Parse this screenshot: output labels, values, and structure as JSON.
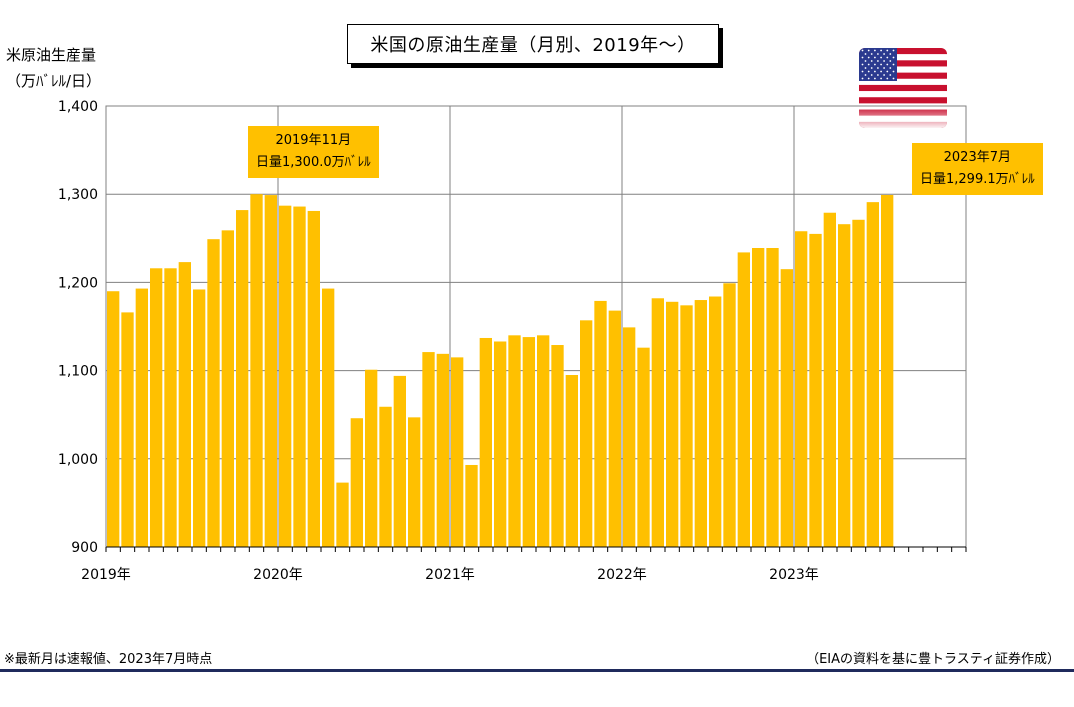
{
  "chart_data": {
    "type": "bar",
    "title": "米国の原油生産量（月別、2019年～）",
    "ylabel_line1": "米原油生産量",
    "ylabel_line2": "（万ﾊﾞﾚﾙ/日）",
    "ylim": [
      900,
      1400
    ],
    "y_ticks": [
      "900",
      "1,000",
      "1,100",
      "1,200",
      "1,300",
      "1,400"
    ],
    "x_tick_labels": [
      "2019年",
      "2020年",
      "2021年",
      "2022年",
      "2023年"
    ],
    "grid": true,
    "bar_color": "#ffc000",
    "categories": [
      "2019-01",
      "2019-02",
      "2019-03",
      "2019-04",
      "2019-05",
      "2019-06",
      "2019-07",
      "2019-08",
      "2019-09",
      "2019-10",
      "2019-11",
      "2019-12",
      "2020-01",
      "2020-02",
      "2020-03",
      "2020-04",
      "2020-05",
      "2020-06",
      "2020-07",
      "2020-08",
      "2020-09",
      "2020-10",
      "2020-11",
      "2020-12",
      "2021-01",
      "2021-02",
      "2021-03",
      "2021-04",
      "2021-05",
      "2021-06",
      "2021-07",
      "2021-08",
      "2021-09",
      "2021-10",
      "2021-11",
      "2021-12",
      "2022-01",
      "2022-02",
      "2022-03",
      "2022-04",
      "2022-05",
      "2022-06",
      "2022-07",
      "2022-08",
      "2022-09",
      "2022-10",
      "2022-11",
      "2022-12",
      "2023-01",
      "2023-02",
      "2023-03",
      "2023-04",
      "2023-05",
      "2023-06",
      "2023-07"
    ],
    "values": [
      1190,
      1166,
      1193,
      1216,
      1216,
      1223,
      1192,
      1249,
      1259,
      1282,
      1300,
      1299,
      1287,
      1286,
      1281,
      1193,
      973,
      1046,
      1101,
      1059,
      1094,
      1047,
      1121,
      1119,
      1115,
      993,
      1137,
      1133,
      1140,
      1138,
      1140,
      1129,
      1095,
      1157,
      1179,
      1168,
      1149,
      1126,
      1182,
      1178,
      1174,
      1180,
      1184,
      1199,
      1234,
      1239,
      1239,
      1215,
      1258,
      1255,
      1279,
      1266,
      1271,
      1291,
      1299.1
    ],
    "annotations": [
      {
        "line1": "2019年11月",
        "line2": "日量1,300.0万ﾊﾞﾚﾙ"
      },
      {
        "line1": "2023年7月",
        "line2": "日量1,299.1万ﾊﾞﾚﾙ"
      }
    ]
  },
  "flag": {
    "icon": "us-flag-icon",
    "red": "#c8102e",
    "blue": "#2b3a8f"
  },
  "footer": {
    "note": "※最新月は速報値、2023年7月時点",
    "source": "（EIAの資料を基に豊トラスティ証券作成）"
  }
}
